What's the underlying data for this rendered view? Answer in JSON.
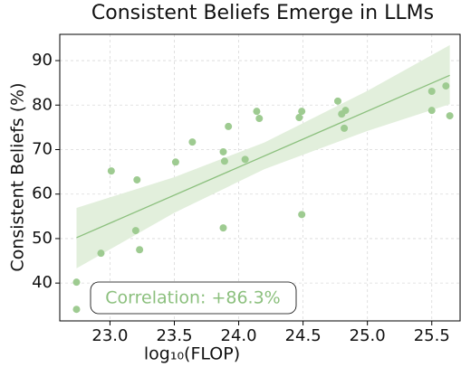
{
  "chart_data": {
    "type": "scatter",
    "title": "Consistent Beliefs Emerge in LLMs",
    "xlabel": "log₁₀(FLOP)",
    "ylabel": "Consistent Beliefs (%)",
    "annotation": "Correlation: +86.3%",
    "color": "#9ecb91",
    "line_color": "#8cc07e",
    "band_color": "#e2efdc",
    "grid": true,
    "xlim": [
      22.61,
      25.72
    ],
    "ylim": [
      31.5,
      95.9
    ],
    "xticks": [
      {
        "value": 23,
        "label": "23.0"
      },
      {
        "value": 23.5,
        "label": "23.5"
      },
      {
        "value": 24,
        "label": "24.0"
      },
      {
        "value": 24.5,
        "label": "24.5"
      },
      {
        "value": 25,
        "label": "25.0"
      },
      {
        "value": 25.5,
        "label": "25.5"
      }
    ],
    "yticks": [
      40,
      50,
      60,
      70,
      80,
      90
    ],
    "x": [
      22.74,
      22.74,
      22.93,
      23.01,
      23.2,
      23.23,
      23.21,
      23.51,
      23.64,
      23.88,
      23.88,
      23.89,
      23.92,
      24.05,
      24.14,
      24.16,
      24.47,
      24.49,
      24.49,
      24.77,
      24.8,
      24.83,
      24.82,
      25.5,
      25.5,
      25.61,
      25.64
    ],
    "values": [
      40.2,
      34.1,
      46.7,
      65.2,
      51.8,
      47.5,
      63.2,
      67.2,
      71.7,
      52.4,
      69.5,
      67.4,
      75.2,
      67.8,
      78.6,
      77.0,
      77.2,
      78.6,
      55.4,
      80.9,
      78.0,
      78.8,
      74.8,
      83.1,
      78.8,
      84.3,
      77.6
    ],
    "fit": {
      "x": [
        22.74,
        25.64
      ],
      "y": [
        50.2,
        86.7
      ]
    },
    "band": {
      "x": [
        22.74,
        23.5,
        24.2,
        25.0,
        25.64
      ],
      "lower": [
        43.3,
        55.8,
        65.6,
        74.2,
        80.2
      ],
      "upper": [
        56.9,
        63.8,
        71.6,
        83.2,
        93.5
      ]
    }
  }
}
